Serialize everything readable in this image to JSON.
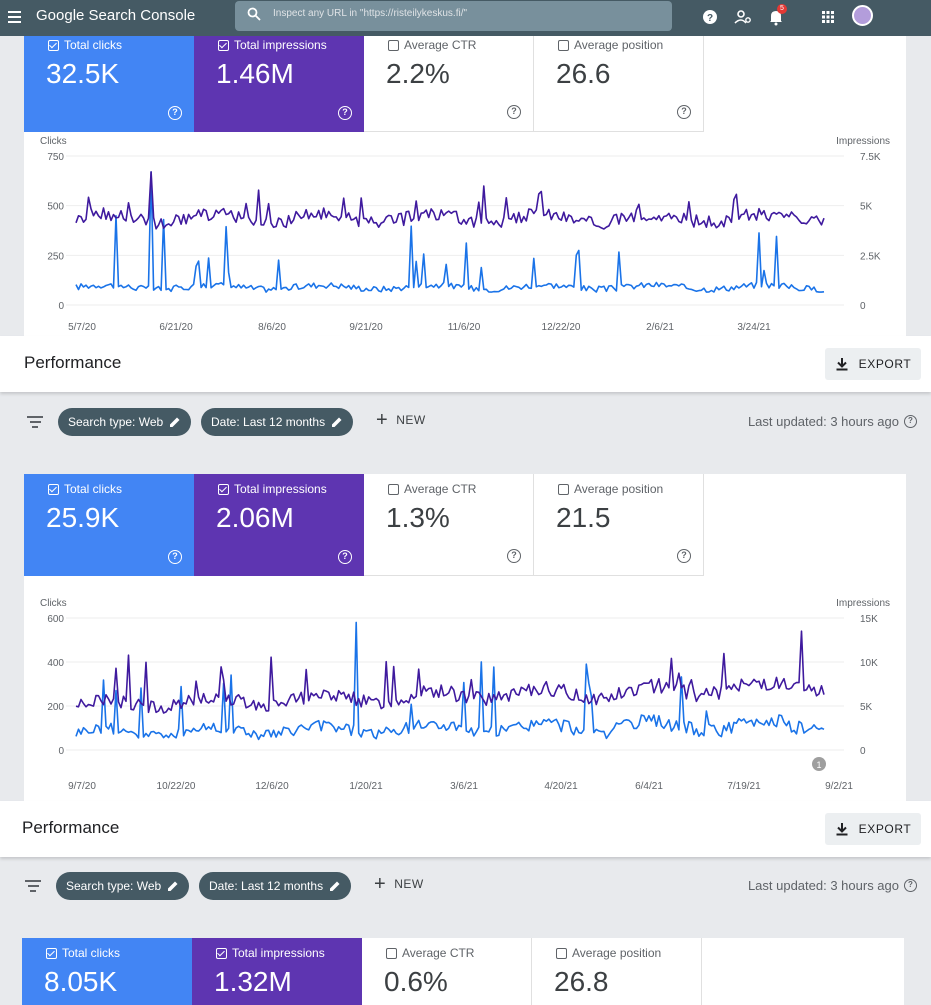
{
  "app": {
    "title_google": "Google",
    "title_product": "Search Console",
    "search_placeholder": "Inspect any URL in \"https://risteilykeskus.fi/\"",
    "notification_count": "5"
  },
  "colors": {
    "clicks": "#1a73e8",
    "impressions": "#3f1a9e",
    "blue_card": "#4285f4",
    "purple_card": "#5e35b1",
    "topbar": "#455a64"
  },
  "icons": [
    "menu-icon",
    "search-icon",
    "help-icon",
    "people-icon",
    "bell-icon",
    "apps-icon",
    "avatar"
  ],
  "reports": [
    {
      "metrics": [
        {
          "label": "Total clicks",
          "value": "32.5K",
          "checked": true
        },
        {
          "label": "Total impressions",
          "value": "1.46M",
          "checked": true
        },
        {
          "label": "Average CTR",
          "value": "2.2%",
          "checked": false
        },
        {
          "label": "Average position",
          "value": "26.6",
          "checked": false
        }
      ],
      "chart": {
        "left_axis_title": "Clicks",
        "right_axis_title": "Impressions",
        "left_ticks": [
          "750",
          "500",
          "250",
          "0"
        ],
        "right_ticks": [
          "7.5K",
          "5K",
          "2.5K",
          "0"
        ],
        "x_ticks": [
          "5/7/20",
          "6/21/20",
          "8/6/20",
          "9/21/20",
          "11/6/20",
          "12/22/20",
          "2/6/21",
          "3/24/21"
        ],
        "annotation": ""
      },
      "performance": {
        "title": "Performance",
        "export_label": "EXPORT"
      },
      "filters": {
        "chips": [
          "Search type: Web",
          "Date: Last 12 months"
        ],
        "new_label": "NEW",
        "updated": "Last updated: 3 hours ago"
      }
    },
    {
      "metrics": [
        {
          "label": "Total clicks",
          "value": "25.9K",
          "checked": true
        },
        {
          "label": "Total impressions",
          "value": "2.06M",
          "checked": true
        },
        {
          "label": "Average CTR",
          "value": "1.3%",
          "checked": false
        },
        {
          "label": "Average position",
          "value": "21.5",
          "checked": false
        }
      ],
      "chart": {
        "left_axis_title": "Clicks",
        "right_axis_title": "Impressions",
        "left_ticks": [
          "600",
          "400",
          "200",
          "0"
        ],
        "right_ticks": [
          "15K",
          "10K",
          "5K",
          "0"
        ],
        "x_ticks": [
          "9/7/20",
          "10/22/20",
          "12/6/20",
          "1/20/21",
          "3/6/21",
          "4/20/21",
          "6/4/21",
          "7/19/21",
          "9/2/21"
        ],
        "annotation": "1"
      },
      "performance": {
        "title": "Performance",
        "export_label": "EXPORT"
      },
      "filters": {
        "chips": [
          "Search type: Web",
          "Date: Last 12 months"
        ],
        "new_label": "NEW",
        "updated": "Last updated: 3 hours ago"
      }
    },
    {
      "metrics": [
        {
          "label": "Total clicks",
          "value": "8.05K",
          "checked": true
        },
        {
          "label": "Total impressions",
          "value": "1.32M",
          "checked": true
        },
        {
          "label": "Average CTR",
          "value": "0.6%",
          "checked": false
        },
        {
          "label": "Average position",
          "value": "26.8",
          "checked": false
        }
      ]
    }
  ],
  "chart_data": [
    {
      "type": "line",
      "x_range": [
        "5/7/20",
        "5/6/21"
      ],
      "series": [
        {
          "name": "Clicks",
          "axis": "left",
          "ylim": [
            0,
            750
          ],
          "typical_range": [
            50,
            120
          ],
          "peak": 670
        },
        {
          "name": "Impressions",
          "axis": "right",
          "ylim": [
            0,
            7500
          ],
          "typical_range": [
            3500,
            5000
          ],
          "peak": 6700
        }
      ]
    },
    {
      "type": "line",
      "x_range": [
        "9/7/20",
        "9/6/21"
      ],
      "series": [
        {
          "name": "Clicks",
          "axis": "left",
          "ylim": [
            0,
            600
          ],
          "typical_range": [
            20,
            150
          ],
          "peak": 580
        },
        {
          "name": "Impressions",
          "axis": "right",
          "ylim": [
            0,
            15000
          ],
          "typical_range": [
            4000,
            7500
          ],
          "peak": 13500
        }
      ]
    }
  ]
}
